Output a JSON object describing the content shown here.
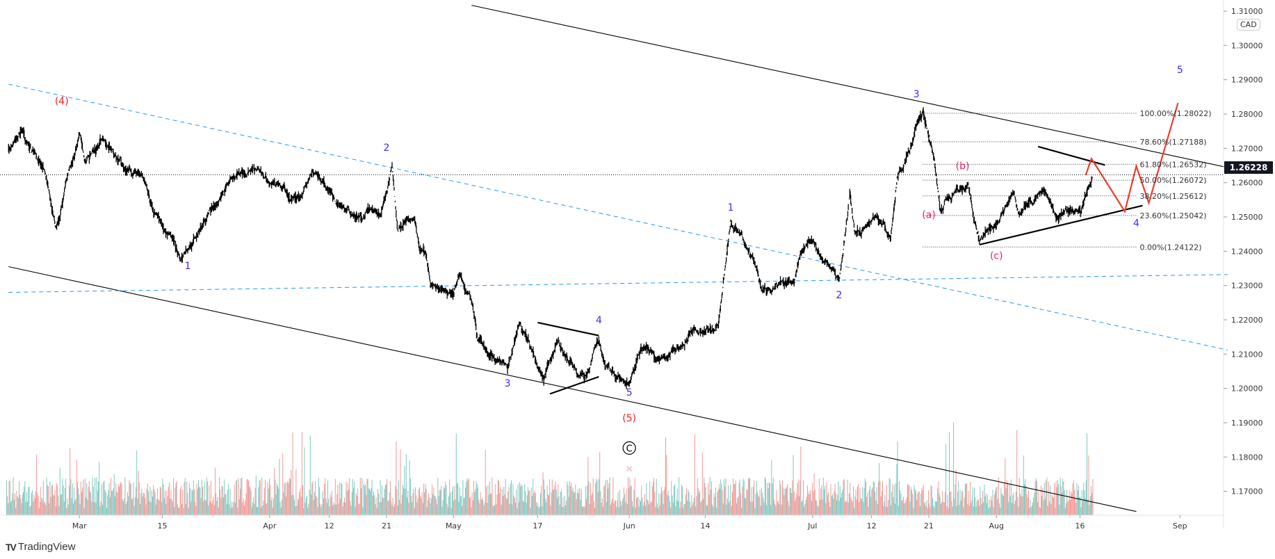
{
  "chart_data": {
    "type": "line",
    "symbol_currency": "CAD",
    "last_price": "1.26228",
    "ylim": [
      1.165,
      1.313
    ],
    "y_ticks": [
      "1.31000",
      "1.30000",
      "1.29000",
      "1.28000",
      "1.27000",
      "1.26000",
      "1.25000",
      "1.24000",
      "1.23000",
      "1.22000",
      "1.21000",
      "1.20000",
      "1.19000",
      "1.18000",
      "1.17000"
    ],
    "x_ticks": [
      {
        "label": "Mar",
        "date": "2021-03-01"
      },
      {
        "label": "15",
        "date": "2021-03-15"
      },
      {
        "label": "Apr",
        "date": "2021-04-01"
      },
      {
        "label": "12",
        "date": "2021-04-12"
      },
      {
        "label": "21",
        "date": "2021-04-21"
      },
      {
        "label": "May",
        "date": "2021-05-03"
      },
      {
        "label": "17",
        "date": "2021-05-17"
      },
      {
        "label": "Jun",
        "date": "2021-06-01"
      },
      {
        "label": "14",
        "date": "2021-06-14"
      },
      {
        "label": "Jul",
        "date": "2021-07-01"
      },
      {
        "label": "12",
        "date": "2021-07-12"
      },
      {
        "label": "21",
        "date": "2021-07-21"
      },
      {
        "label": "Aug",
        "date": "2021-08-02"
      },
      {
        "label": "16",
        "date": "2021-08-16"
      },
      {
        "label": "Sep",
        "date": "2021-09-01"
      }
    ],
    "price_series": [
      [
        "2021-02-17",
        1.27
      ],
      [
        "2021-02-19",
        1.2745
      ],
      [
        "2021-02-23",
        1.264
      ],
      [
        "2021-02-25",
        1.247
      ],
      [
        "2021-03-01",
        1.2745
      ],
      [
        "2021-03-02",
        1.266
      ],
      [
        "2021-03-05",
        1.273
      ],
      [
        "2021-03-11",
        1.263
      ],
      [
        "2021-03-15",
        1.247
      ],
      [
        "2021-03-18",
        1.2379
      ],
      [
        "2021-03-22",
        1.25
      ],
      [
        "2021-03-26",
        1.2615
      ],
      [
        "2021-03-30",
        1.264
      ],
      [
        "2021-04-06",
        1.2556
      ],
      [
        "2021-04-09",
        1.263
      ],
      [
        "2021-04-13",
        1.254
      ],
      [
        "2021-04-16",
        1.25
      ],
      [
        "2021-04-20",
        1.251
      ],
      [
        "2021-04-22",
        1.265
      ],
      [
        "2021-04-23",
        1.2462
      ],
      [
        "2021-04-26",
        1.25
      ],
      [
        "2021-04-27",
        1.24
      ],
      [
        "2021-04-28",
        1.24
      ],
      [
        "2021-04-29",
        1.2296
      ],
      [
        "2021-05-03",
        1.228
      ],
      [
        "2021-05-04",
        1.233
      ],
      [
        "2021-05-06",
        1.226
      ],
      [
        "2021-05-07",
        1.2143
      ],
      [
        "2021-05-10",
        1.2083
      ],
      [
        "2021-05-12",
        1.206
      ],
      [
        "2021-05-14",
        1.219
      ],
      [
        "2021-05-18",
        1.2024
      ],
      [
        "2021-05-20",
        1.213
      ],
      [
        "2021-05-25",
        1.2036
      ],
      [
        "2021-05-27",
        1.2143
      ],
      [
        "2021-05-28",
        1.207
      ],
      [
        "2021-06-01",
        1.2012
      ],
      [
        "2021-06-03",
        1.2119
      ],
      [
        "2021-06-08",
        1.2095
      ],
      [
        "2021-06-11",
        1.2143
      ],
      [
        "2021-06-14",
        1.2166
      ],
      [
        "2021-06-16",
        1.218
      ],
      [
        "2021-06-17",
        1.233
      ],
      [
        "2021-06-18",
        1.2485
      ],
      [
        "2021-06-22",
        1.2355
      ],
      [
        "2021-06-23",
        1.2284
      ],
      [
        "2021-06-28",
        1.2308
      ],
      [
        "2021-06-29",
        1.2391
      ],
      [
        "2021-07-01",
        1.2426
      ],
      [
        "2021-07-06",
        1.2313
      ],
      [
        "2021-07-07",
        1.2426
      ],
      [
        "2021-07-08",
        1.2568
      ],
      [
        "2021-07-09",
        1.245
      ],
      [
        "2021-07-13",
        1.2497
      ],
      [
        "2021-07-15",
        1.244
      ],
      [
        "2021-07-16",
        1.2615
      ],
      [
        "2021-07-20",
        1.2805
      ],
      [
        "2021-07-21",
        1.2734
      ],
      [
        "2021-07-22",
        1.2663
      ],
      [
        "2021-07-23",
        1.2521
      ],
      [
        "2021-07-26",
        1.258
      ],
      [
        "2021-07-28",
        1.2592
      ],
      [
        "2021-07-29",
        1.2497
      ],
      [
        "2021-07-30",
        1.2426
      ],
      [
        "2021-08-02",
        1.2473
      ],
      [
        "2021-08-04",
        1.2544
      ],
      [
        "2021-08-05",
        1.2568
      ],
      [
        "2021-08-06",
        1.2509
      ],
      [
        "2021-08-10",
        1.258
      ],
      [
        "2021-08-11",
        1.2544
      ],
      [
        "2021-08-12",
        1.2497
      ],
      [
        "2021-08-16",
        1.2516
      ],
      [
        "2021-08-17",
        1.2568
      ],
      [
        "2021-08-18",
        1.26228
      ]
    ],
    "fib_levels": [
      {
        "label": "100.00%(1.28022)",
        "price": 1.28022
      },
      {
        "label": "78.60%(1.27188)",
        "price": 1.27188
      },
      {
        "label": "61.80%(1.26532)",
        "price": 1.26532
      },
      {
        "label": "50.00%(1.26072)",
        "price": 1.26072
      },
      {
        "label": "38.20%(1.25612)",
        "price": 1.25612
      },
      {
        "label": "23.60%(1.25042)",
        "price": 1.25042
      },
      {
        "label": "0.00%(1.24122)",
        "price": 1.24122
      }
    ],
    "fib_range": [
      "2021-07-20",
      "2021-08-25"
    ],
    "trendlines": [
      {
        "name": "upper-channel-line",
        "style": "solid-thin",
        "from": [
          "2021-05-06",
          1.3117
        ],
        "to": [
          "2021-09-09",
          1.2644
        ]
      },
      {
        "name": "lower-channel-line",
        "style": "solid-thin",
        "from": [
          "2021-02-17",
          1.2355
        ],
        "to": [
          "2021-08-25",
          1.1641
        ]
      },
      {
        "name": "blue-dashed-upper-line",
        "style": "dashed",
        "from": [
          "2021-02-17",
          1.2887
        ],
        "to": [
          "2021-09-09",
          1.2112
        ]
      },
      {
        "name": "blue-dashed-lower-line",
        "style": "dashed",
        "from": [
          "2021-02-17",
          1.228
        ],
        "to": [
          "2021-09-09",
          1.2332
        ]
      },
      {
        "name": "may-triangle-upper",
        "style": "solid-thick",
        "from": [
          "2021-05-17",
          1.2192
        ],
        "to": [
          "2021-05-27",
          1.2154
        ]
      },
      {
        "name": "may-triangle-lower",
        "style": "solid-thick",
        "from": [
          "2021-05-19",
          1.1984
        ],
        "to": [
          "2021-05-27",
          1.2034
        ]
      },
      {
        "name": "aug-triangle-upper",
        "style": "solid-thick",
        "from": [
          "2021-08-09",
          1.2705
        ],
        "to": [
          "2021-08-20",
          1.2651
        ]
      },
      {
        "name": "aug-triangle-lower",
        "style": "solid-thick",
        "from": [
          "2021-07-30",
          1.2419
        ],
        "to": [
          "2021-08-26",
          1.2533
        ]
      }
    ],
    "projection": [
      [
        "2021-08-17T10:00",
        1.2622
      ],
      [
        "2021-08-18T08:00",
        1.267
      ],
      [
        "2021-08-23T16:00",
        1.2516
      ],
      [
        "2021-08-25T12:00",
        1.2648
      ],
      [
        "2021-08-27T12:00",
        1.2541
      ],
      [
        "2021-09-01T04:00",
        1.2832
      ]
    ],
    "wave_labels": [
      {
        "text": "(4)",
        "date": "2021-02-26",
        "price": 1.2828,
        "color": "red"
      },
      {
        "text": "1",
        "date": "2021-03-19",
        "price": 1.2348,
        "color": "blue"
      },
      {
        "text": "2",
        "date": "2021-04-21",
        "price": 1.2693,
        "color": "blue"
      },
      {
        "text": "3",
        "date": "2021-05-12",
        "price": 1.2005,
        "color": "blue"
      },
      {
        "text": "4",
        "date": "2021-05-27",
        "price": 1.219,
        "color": "blue"
      },
      {
        "text": "5",
        "date": "2021-06-01",
        "price": 1.1979,
        "color": "blue"
      },
      {
        "text": "(5)",
        "date": "2021-06-01",
        "price": 1.1904,
        "color": "red"
      },
      {
        "text": "C",
        "date": "2021-06-01",
        "price": 1.1816,
        "color": "black",
        "circled": true
      },
      {
        "text": "×",
        "date": "2021-06-01T12:00",
        "price": 1.1757,
        "color": "lightpink"
      },
      {
        "text": "1",
        "date": "2021-06-18",
        "price": 1.2518,
        "color": "blue"
      },
      {
        "text": "2",
        "date": "2021-07-06",
        "price": 1.2263,
        "color": "blue"
      },
      {
        "text": "3",
        "date": "2021-07-19",
        "price": 1.2849,
        "color": "blue"
      },
      {
        "text": "(a)",
        "date": "2021-07-21",
        "price": 1.2497,
        "color": "pink"
      },
      {
        "text": "(b)",
        "date": "2021-07-27",
        "price": 1.2639,
        "color": "pink"
      },
      {
        "text": "(c)",
        "date": "2021-08-02",
        "price": 1.2377,
        "color": "pink"
      },
      {
        "text": "4",
        "date": "2021-08-25",
        "price": 1.2473,
        "color": "blue"
      },
      {
        "text": "5",
        "date": "2021-09-01",
        "price": 1.292,
        "color": "blue"
      }
    ]
  },
  "colors": {
    "blue": "#3d2bff",
    "red": "#ff1a1a",
    "pink": "#e91e63",
    "lightpink": "#f7a6c4",
    "black": "#000000",
    "dashed_line": "#2196f3",
    "projection": "#f23a2f",
    "volume_up": "#26a69a",
    "volume_down": "#ef5350",
    "axis_text": "#333333",
    "price_tag_bg": "#131722"
  },
  "branding": {
    "logo_text": "TradingView",
    "logo_mark": "17"
  }
}
